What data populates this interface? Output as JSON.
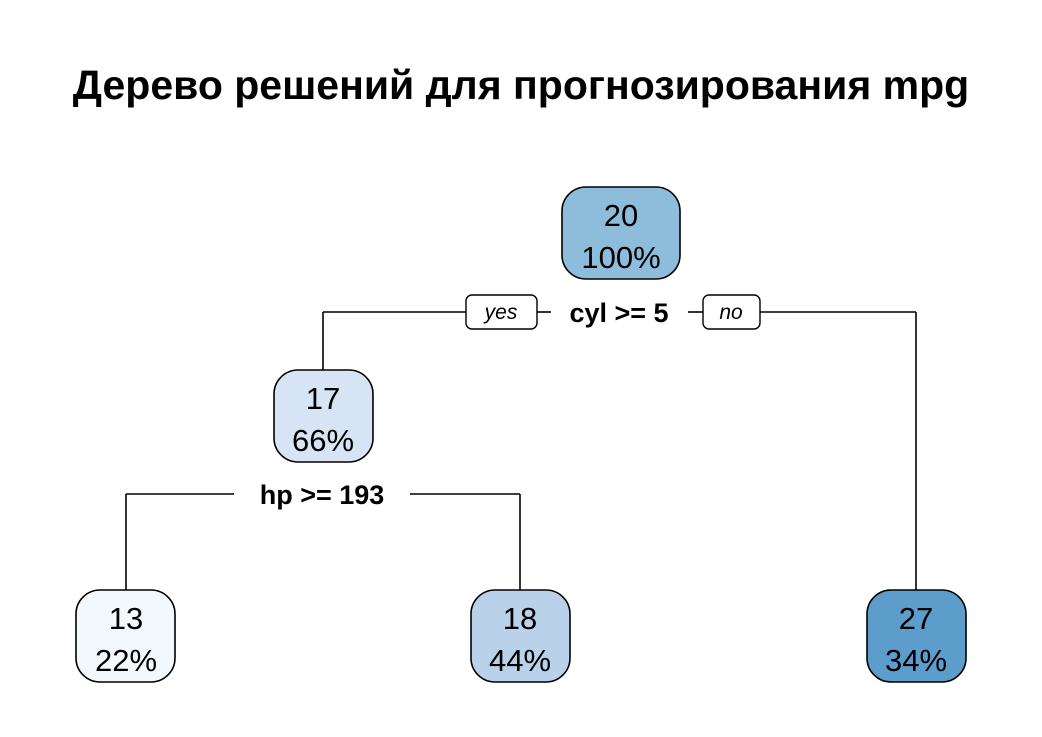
{
  "title": "Дерево решений для прогнозирования mpg",
  "tree": {
    "nodes": [
      {
        "id": "root",
        "value": "20",
        "percent": "100%",
        "fill": "#8EBDDB"
      },
      {
        "id": "left",
        "value": "17",
        "percent": "66%",
        "fill": "#D6E4F3"
      },
      {
        "id": "left-left",
        "value": "13",
        "percent": "22%",
        "fill": "#F3F8FD"
      },
      {
        "id": "left-right",
        "value": "18",
        "percent": "44%",
        "fill": "#BAD1EA"
      },
      {
        "id": "right",
        "value": "27",
        "percent": "34%",
        "fill": "#5C9DCB"
      }
    ],
    "splits": [
      {
        "id": "root-split",
        "label": "cyl >= 5",
        "yes_label": "yes",
        "no_label": "no"
      },
      {
        "id": "left-split",
        "label": "hp >= 193"
      }
    ]
  },
  "colors": {
    "edge": "#000000",
    "text": "#000000",
    "background": "#FFFFFF"
  }
}
